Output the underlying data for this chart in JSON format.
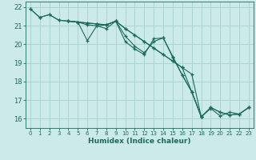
{
  "bg_color": "#cceae8",
  "grid_color": "#aad4d0",
  "line_color": "#1a6b5a",
  "xlabel": "Humidex (Indice chaleur)",
  "xlim": [
    -0.5,
    23.5
  ],
  "ylim": [
    15.5,
    22.3
  ],
  "yticks": [
    16,
    17,
    18,
    19,
    20,
    21,
    22
  ],
  "xticks": [
    0,
    1,
    2,
    3,
    4,
    5,
    6,
    7,
    8,
    9,
    10,
    11,
    12,
    13,
    14,
    15,
    16,
    17,
    18,
    19,
    20,
    21,
    22,
    23
  ],
  "lines": [
    {
      "x": [
        0,
        1,
        2,
        3,
        4,
        5,
        6,
        7,
        8,
        9,
        10,
        11,
        12,
        13,
        14,
        15,
        16,
        17,
        18,
        19,
        20,
        21,
        22,
        23
      ],
      "y": [
        21.9,
        21.45,
        21.6,
        21.3,
        21.25,
        21.2,
        21.15,
        21.1,
        21.05,
        21.25,
        20.85,
        20.5,
        20.15,
        19.8,
        19.45,
        19.1,
        18.75,
        18.4,
        16.1,
        16.6,
        16.35,
        16.2,
        16.25,
        16.6
      ]
    },
    {
      "x": [
        0,
        1,
        2,
        3,
        4,
        5,
        6,
        7,
        8,
        9,
        10,
        11,
        12,
        13,
        14,
        15,
        16,
        17,
        18
      ],
      "y": [
        21.9,
        21.45,
        21.6,
        21.3,
        21.25,
        21.2,
        21.15,
        21.1,
        21.05,
        21.25,
        20.45,
        19.9,
        19.55,
        20.15,
        20.35,
        19.35,
        18.35,
        17.45,
        16.1
      ]
    },
    {
      "x": [
        4,
        5,
        6,
        7,
        8,
        9,
        10,
        11,
        12,
        13,
        14,
        15,
        16,
        17,
        18,
        19,
        20,
        21,
        22,
        23
      ],
      "y": [
        21.25,
        21.2,
        21.05,
        21.0,
        20.85,
        21.25,
        20.85,
        20.5,
        20.15,
        19.8,
        19.45,
        19.1,
        18.75,
        17.45,
        16.1,
        16.6,
        16.35,
        16.2,
        16.25,
        16.6
      ]
    },
    {
      "x": [
        4,
        5,
        6,
        7,
        8,
        9,
        10,
        11,
        12,
        13,
        14,
        15,
        16,
        17,
        18,
        19,
        20,
        21,
        22,
        23
      ],
      "y": [
        21.25,
        21.2,
        20.2,
        21.0,
        21.05,
        21.25,
        20.15,
        19.75,
        19.45,
        20.3,
        20.35,
        19.3,
        18.35,
        17.45,
        16.1,
        16.55,
        16.15,
        16.35,
        16.25,
        16.6
      ]
    }
  ]
}
